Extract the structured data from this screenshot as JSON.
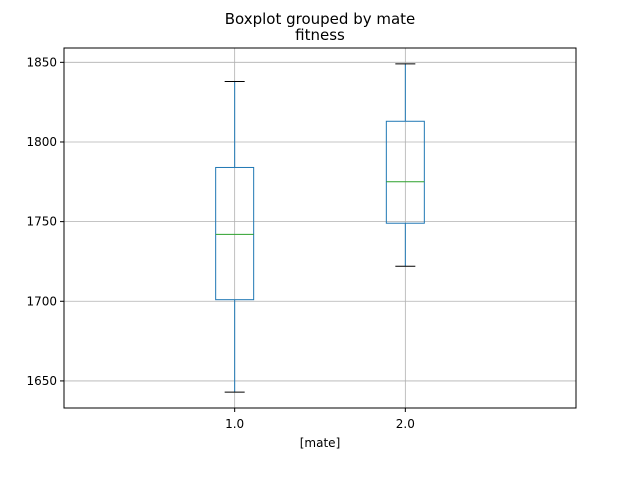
{
  "chart_data": {
    "type": "box",
    "suptitle": "Boxplot grouped by mate",
    "title": "fitness",
    "xlabel": "[mate]",
    "ylabel": "",
    "categories": [
      "1.0",
      "2.0"
    ],
    "boxes": [
      {
        "category": "1.0",
        "whisker_low": 1643,
        "q1": 1701,
        "median": 1742,
        "q3": 1784,
        "whisker_high": 1838
      },
      {
        "category": "2.0",
        "whisker_low": 1722,
        "q1": 1749,
        "median": 1775,
        "q3": 1813,
        "whisker_high": 1849
      }
    ],
    "ylim": [
      1633,
      1859
    ],
    "yticks": [
      1650,
      1700,
      1750,
      1800,
      1850
    ],
    "grid": true,
    "colors": {
      "box": "#1f77b4",
      "median": "#2ca02c",
      "whisker": "#1f77b4",
      "cap": "#000000",
      "grid": "#b0b0b0"
    }
  }
}
